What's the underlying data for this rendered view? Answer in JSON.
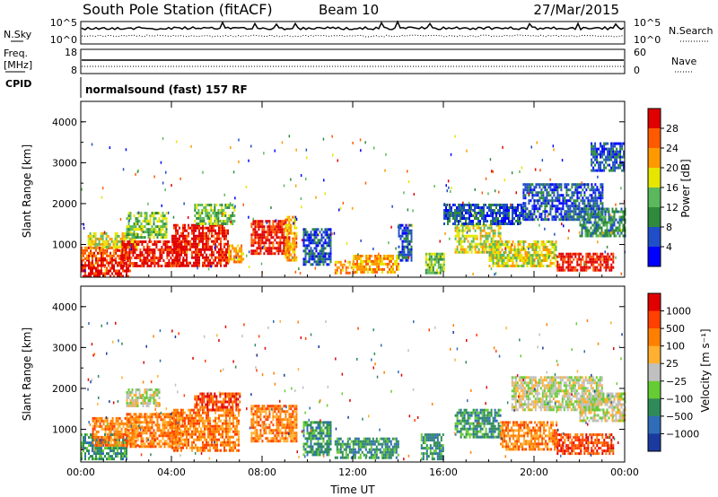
{
  "header": {
    "station": "South Pole Station (fitACF)",
    "beam": "Beam 10",
    "date": "27/Mar/2015"
  },
  "noise_panel": {
    "left_label": "N.Sky",
    "left_ticks": [
      "10^5",
      "10^0"
    ],
    "right_label": "N.Search",
    "right_ticks": [
      "10^5",
      "10^0"
    ]
  },
  "freq_panel": {
    "left_label_1": "Freq.",
    "left_label_2": "[MHz]",
    "left_ticks": [
      "18",
      "8"
    ],
    "right_label": "Nave",
    "right_ticks": [
      "60",
      "0"
    ]
  },
  "cpid_panel": {
    "label": "CPID",
    "text": "normalsound (fast) 157 RF"
  },
  "chart_data": [
    {
      "type": "heatmap",
      "name": "power",
      "title": "",
      "xlabel": "",
      "ylabel": "Slant Range [km]",
      "x_ticks": [
        "00:00",
        "04:00",
        "08:00",
        "12:00",
        "16:00",
        "20:00",
        "00:00"
      ],
      "xlim": [
        0,
        24
      ],
      "ylim": [
        200,
        4500
      ],
      "y_ticks": [
        1000,
        2000,
        3000,
        4000
      ],
      "colorbar": {
        "label": "Power [dB]",
        "ticks": [
          "4",
          "8",
          "12",
          "16",
          "20",
          "24",
          "28"
        ],
        "colors": [
          "#0000ff",
          "#1f4ec8",
          "#2f8a3c",
          "#5cb85c",
          "#e6e600",
          "#ff9900",
          "#ff5a00",
          "#e00000"
        ]
      },
      "regions": [
        {
          "t0": 0.0,
          "t1": 2.2,
          "r0": 250,
          "r1": 650,
          "level": 7
        },
        {
          "t0": 0.0,
          "t1": 2.0,
          "r0": 650,
          "r1": 950,
          "level": 6
        },
        {
          "t0": 0.3,
          "t1": 2.5,
          "r0": 950,
          "r1": 1300,
          "level": 4
        },
        {
          "t0": 1.8,
          "t1": 4.5,
          "r0": 500,
          "r1": 1100,
          "level": 7
        },
        {
          "t0": 2.0,
          "t1": 3.8,
          "r0": 1200,
          "r1": 1800,
          "level": 3
        },
        {
          "t0": 4.0,
          "t1": 6.5,
          "r0": 500,
          "r1": 1500,
          "level": 7
        },
        {
          "t0": 5.0,
          "t1": 6.8,
          "r0": 1500,
          "r1": 2000,
          "level": 3
        },
        {
          "t0": 6.5,
          "t1": 7.2,
          "r0": 600,
          "r1": 1000,
          "level": 5
        },
        {
          "t0": 7.5,
          "t1": 9.2,
          "r0": 800,
          "r1": 1600,
          "level": 7
        },
        {
          "t0": 9.0,
          "t1": 9.5,
          "r0": 600,
          "r1": 1700,
          "level": 5
        },
        {
          "t0": 9.8,
          "t1": 11.0,
          "r0": 500,
          "r1": 1400,
          "level": 1
        },
        {
          "t0": 11.2,
          "t1": 12.0,
          "r0": 300,
          "r1": 600,
          "level": 5
        },
        {
          "t0": 12.0,
          "t1": 14.0,
          "r0": 300,
          "r1": 750,
          "level": 5
        },
        {
          "t0": 14.0,
          "t1": 14.6,
          "r0": 600,
          "r1": 1500,
          "level": 1
        },
        {
          "t0": 15.2,
          "t1": 16.0,
          "r0": 300,
          "r1": 800,
          "level": 3
        },
        {
          "t0": 16.5,
          "t1": 18.5,
          "r0": 800,
          "r1": 1500,
          "level": 4
        },
        {
          "t0": 16.0,
          "t1": 19.5,
          "r0": 1500,
          "r1": 2000,
          "level": 1
        },
        {
          "t0": 18.0,
          "t1": 21.0,
          "r0": 500,
          "r1": 1100,
          "level": 4
        },
        {
          "t0": 19.5,
          "t1": 23.0,
          "r0": 1600,
          "r1": 2500,
          "level": 1
        },
        {
          "t0": 21.0,
          "t1": 23.5,
          "r0": 400,
          "r1": 800,
          "level": 7
        },
        {
          "t0": 22.0,
          "t1": 24.0,
          "r0": 1200,
          "r1": 1900,
          "level": 2
        },
        {
          "t0": 22.5,
          "t1": 24.0,
          "r0": 2800,
          "r1": 3500,
          "level": 1
        }
      ]
    },
    {
      "type": "heatmap",
      "name": "velocity",
      "title": "",
      "xlabel": "Time UT",
      "ylabel": "Slant Range [km]",
      "x_ticks": [
        "00:00",
        "04:00",
        "08:00",
        "12:00",
        "16:00",
        "20:00",
        "00:00"
      ],
      "xlim": [
        0,
        24
      ],
      "ylim": [
        200,
        4500
      ],
      "y_ticks": [
        1000,
        2000,
        3000,
        4000
      ],
      "colorbar": {
        "label": "Velocity [m s⁻¹]",
        "ticks": [
          "1000",
          "500",
          "100",
          "25",
          "−25",
          "−100",
          "−500",
          "−1000"
        ],
        "colors": [
          "#1a3aa0",
          "#2f6db8",
          "#2e8b57",
          "#66cc33",
          "#c0c0c0",
          "#ffb030",
          "#ff8000",
          "#ff4000",
          "#e00000"
        ]
      },
      "regions": [
        {
          "t0": 0.0,
          "t1": 2.0,
          "r0": 250,
          "r1": 900,
          "level": 2
        },
        {
          "t0": 0.5,
          "t1": 2.5,
          "r0": 600,
          "r1": 1300,
          "level": 6
        },
        {
          "t0": 2.0,
          "t1": 4.5,
          "r0": 600,
          "r1": 1400,
          "level": 6
        },
        {
          "t0": 2.0,
          "t1": 3.5,
          "r0": 1600,
          "r1": 2000,
          "level": 4
        },
        {
          "t0": 4.0,
          "t1": 7.0,
          "r0": 500,
          "r1": 1500,
          "level": 6
        },
        {
          "t0": 5.0,
          "t1": 7.0,
          "r0": 1500,
          "r1": 1900,
          "level": 7
        },
        {
          "t0": 7.5,
          "t1": 9.5,
          "r0": 700,
          "r1": 1600,
          "level": 6
        },
        {
          "t0": 9.8,
          "t1": 11.0,
          "r0": 400,
          "r1": 1200,
          "level": 2
        },
        {
          "t0": 11.2,
          "t1": 14.0,
          "r0": 300,
          "r1": 800,
          "level": 2
        },
        {
          "t0": 15.0,
          "t1": 16.0,
          "r0": 300,
          "r1": 900,
          "level": 2
        },
        {
          "t0": 16.5,
          "t1": 18.5,
          "r0": 800,
          "r1": 1500,
          "level": 2
        },
        {
          "t0": 18.5,
          "t1": 21.0,
          "r0": 500,
          "r1": 1200,
          "level": 6
        },
        {
          "t0": 19.0,
          "t1": 23.0,
          "r0": 1500,
          "r1": 2300,
          "level": 4
        },
        {
          "t0": 21.0,
          "t1": 23.5,
          "r0": 400,
          "r1": 900,
          "level": 7
        },
        {
          "t0": 22.0,
          "t1": 24.0,
          "r0": 1200,
          "r1": 1900,
          "level": 4
        }
      ]
    }
  ]
}
